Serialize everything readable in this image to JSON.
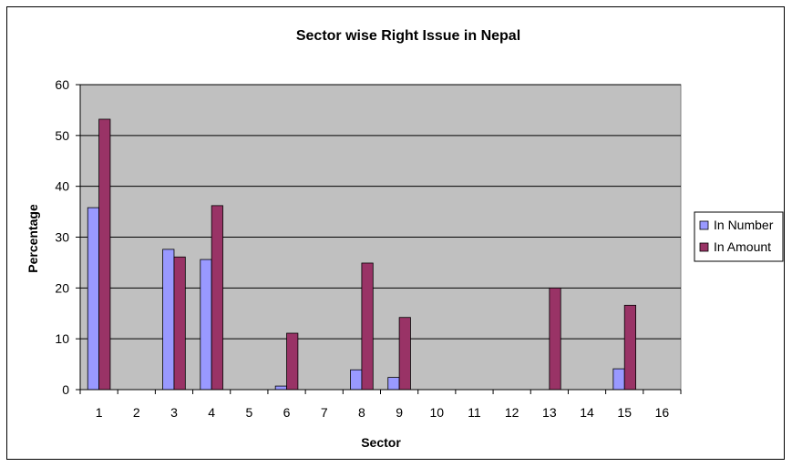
{
  "chart_data": {
    "type": "bar",
    "title": "Sector wise Right Issue in Nepal",
    "xlabel": "Sector",
    "ylabel": "Percentage",
    "ylim": [
      0,
      60
    ],
    "yticks": [
      0,
      10,
      20,
      30,
      40,
      50,
      60
    ],
    "grid": true,
    "legend_position": "right",
    "plot_background": "#C0C0C0",
    "categories": [
      "1",
      "2",
      "3",
      "4",
      "5",
      "6",
      "7",
      "8",
      "9",
      "10",
      "11",
      "12",
      "13",
      "14",
      "15",
      "16"
    ],
    "series": [
      {
        "name": "In Number",
        "color": "#9999FF",
        "values": [
          35.8,
          0,
          27.6,
          25.6,
          0,
          0.7,
          0,
          3.9,
          2.4,
          0,
          0,
          0,
          0,
          0,
          4.1,
          0
        ]
      },
      {
        "name": "In Amount",
        "color": "#993366",
        "values": [
          53.2,
          0,
          26.1,
          36.2,
          0,
          11.1,
          0,
          24.9,
          14.2,
          0,
          0,
          0,
          20.0,
          0,
          16.6,
          0
        ]
      }
    ]
  }
}
